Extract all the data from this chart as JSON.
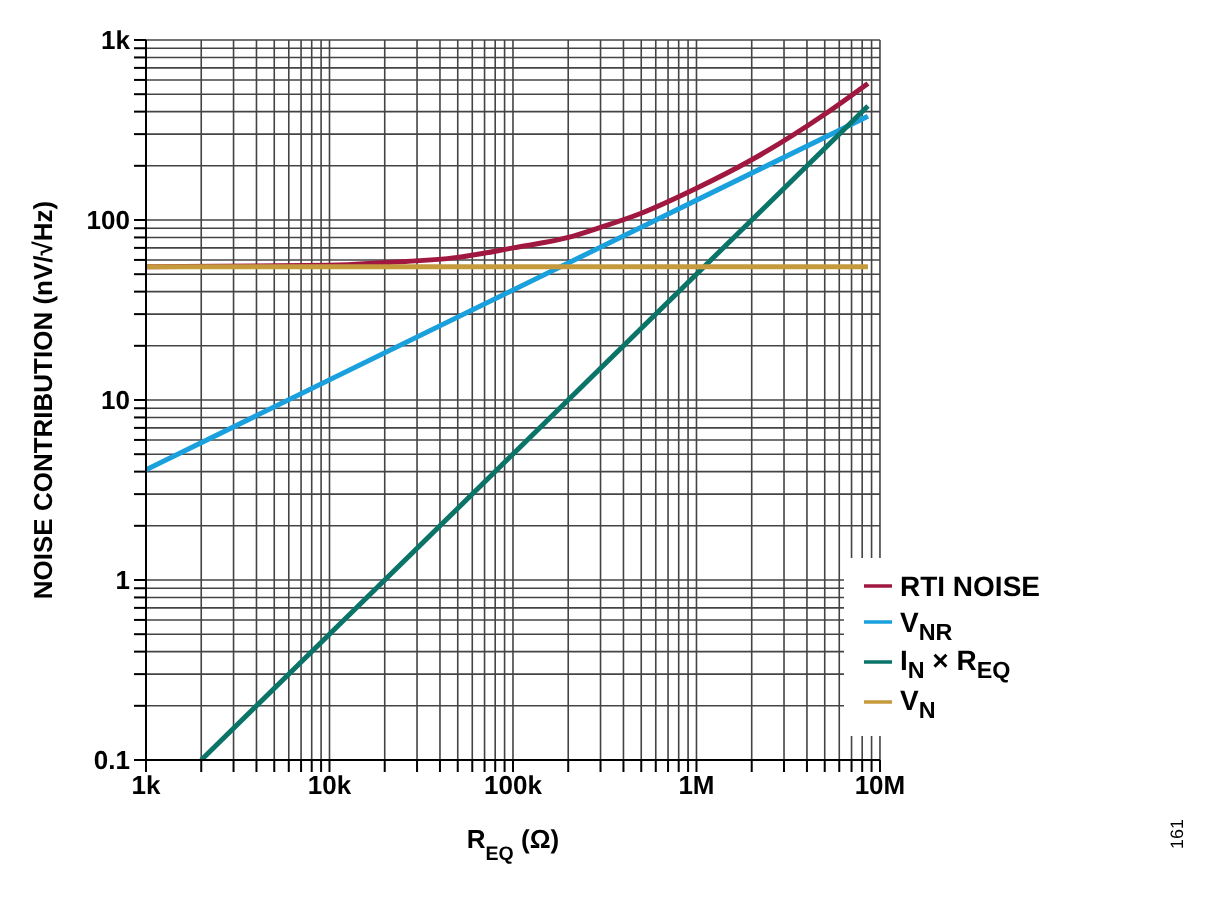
{
  "chart_data": {
    "type": "line",
    "xlabel": "R$_{EQ}$ (Ω)",
    "ylabel": "NOISE CONTRIBUTION (nV/√Hz)",
    "log": "xy",
    "grid": true,
    "legend": "bottom right",
    "line_style": "solid",
    "marker": "none",
    "xlim": [
      1000,
      10000000
    ],
    "ylim": [
      0.1,
      1000
    ],
    "xticks": [
      {
        "value": 1000,
        "label": "1k"
      },
      {
        "value": 2000,
        "label": null
      },
      {
        "value": 3000,
        "label": null
      },
      {
        "value": 4000,
        "label": null
      },
      {
        "value": 5000,
        "label": null
      },
      {
        "value": 6000,
        "label": null
      },
      {
        "value": 7000,
        "label": null
      },
      {
        "value": 8000,
        "label": null
      },
      {
        "value": 9000,
        "label": null
      },
      {
        "value": 10000,
        "label": "10k"
      },
      {
        "value": 20000,
        "label": null
      },
      {
        "value": 30000,
        "label": null
      },
      {
        "value": 40000,
        "label": null
      },
      {
        "value": 50000,
        "label": null
      },
      {
        "value": 60000,
        "label": null
      },
      {
        "value": 70000,
        "label": null
      },
      {
        "value": 80000,
        "label": null
      },
      {
        "value": 90000,
        "label": null
      },
      {
        "value": 100000,
        "label": "100k"
      },
      {
        "value": 200000,
        "label": null
      },
      {
        "value": 300000,
        "label": null
      },
      {
        "value": 400000,
        "label": null
      },
      {
        "value": 500000,
        "label": null
      },
      {
        "value": 600000,
        "label": null
      },
      {
        "value": 700000,
        "label": null
      },
      {
        "value": 800000,
        "label": null
      },
      {
        "value": 900000,
        "label": null
      },
      {
        "value": 1000000,
        "label": "1M"
      },
      {
        "value": 2000000,
        "label": null
      },
      {
        "value": 3000000,
        "label": null
      },
      {
        "value": 4000000,
        "label": null
      },
      {
        "value": 5000000,
        "label": null
      },
      {
        "value": 6000000,
        "label": null
      },
      {
        "value": 7000000,
        "label": null
      },
      {
        "value": 8000000,
        "label": null
      },
      {
        "value": 9000000,
        "label": null
      },
      {
        "value": 10000000,
        "label": "10M"
      }
    ],
    "yticks": [
      0.1,
      {
        "value": 0.2,
        "label": null
      },
      {
        "value": 0.3,
        "label": null
      },
      {
        "value": 0.4,
        "label": null
      },
      {
        "value": 0.5,
        "label": null
      },
      {
        "value": 0.6,
        "label": null
      },
      {
        "value": 0.7,
        "label": null
      },
      {
        "value": 0.8,
        "label": null
      },
      {
        "value": 0.9,
        "label": null
      },
      1,
      {
        "value": 2,
        "label": null
      },
      {
        "value": 3,
        "label": null
      },
      {
        "value": 4,
        "label": null
      },
      {
        "value": 5,
        "label": null
      },
      {
        "value": 6,
        "label": null
      },
      {
        "value": 7,
        "label": null
      },
      {
        "value": 8,
        "label": null
      },
      {
        "value": 9,
        "label": null
      },
      10,
      {
        "value": 20,
        "label": null
      },
      {
        "value": 30,
        "label": null
      },
      {
        "value": 40,
        "label": null
      },
      {
        "value": 50,
        "label": null
      },
      {
        "value": 60,
        "label": null
      },
      {
        "value": 70,
        "label": null
      },
      {
        "value": 80,
        "label": null
      },
      {
        "value": 90,
        "label": null
      },
      100,
      {
        "value": 200,
        "label": null
      },
      {
        "value": 300,
        "label": null
      },
      {
        "value": 400,
        "label": null
      },
      {
        "value": 500,
        "label": null
      },
      {
        "value": 600,
        "label": null
      },
      {
        "value": 700,
        "label": null
      },
      {
        "value": 800,
        "label": null
      },
      {
        "value": 900,
        "label": null
      },
      {
        "value": 1000,
        "label": "1k"
      }
    ],
    "series": [
      {
        "name": "RTI NOISE",
        "color": "#a0173f",
        "x": [
          1000,
          10000,
          20000,
          50000,
          100000,
          200000,
          300000,
          500000,
          1000000,
          2000000,
          5000000,
          8600000
        ],
        "values": [
          55,
          56,
          58,
          62,
          70,
          80,
          91,
          109,
          150,
          216,
          387,
          574
        ]
      },
      {
        "name": "V$_{NR}$",
        "color": "#1aa0dc",
        "x": [
          1000,
          8600000
        ],
        "values": [
          4.1,
          377
        ]
      },
      {
        "name": "I$_{N}$ × R$_{EQ}$",
        "color": "#0b7468",
        "x": [
          2000,
          8600000
        ],
        "values": [
          0.1,
          430
        ]
      },
      {
        "name": "V$_{N}$",
        "color": "#c49a3c",
        "x": [
          1000,
          8600000
        ],
        "values": [
          55,
          55
        ]
      }
    ],
    "annotations": [
      "161"
    ]
  }
}
